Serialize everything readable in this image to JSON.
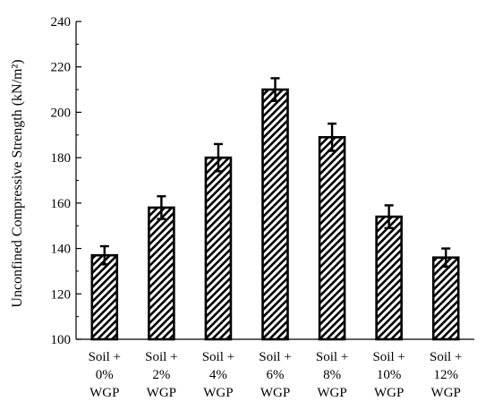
{
  "chart_data": {
    "type": "bar",
    "title": "",
    "xlabel": "",
    "ylabel": "Unconfined Compressive Strength (kN/m²)",
    "categories": [
      [
        "Soil +",
        "0%",
        "WGP"
      ],
      [
        "Soil +",
        "2%",
        "WGP"
      ],
      [
        "Soil +",
        "4%",
        "WGP"
      ],
      [
        "Soil +",
        "6%",
        "WGP"
      ],
      [
        "Soil +",
        "8%",
        "WGP"
      ],
      [
        "Soil +",
        "10%",
        "WGP"
      ],
      [
        "Soil +",
        "12%",
        "WGP"
      ]
    ],
    "values": [
      137,
      158,
      180,
      210,
      189,
      154,
      136
    ],
    "error": [
      4,
      5,
      6,
      5,
      6,
      5,
      4
    ],
    "ylim": [
      100,
      240
    ],
    "yticks": [
      100,
      120,
      140,
      160,
      180,
      200,
      220,
      240
    ],
    "grid": false,
    "bar_fill": "diagonal-hatch",
    "colors": {
      "bar_stroke": "#000000",
      "hatch": "#000000",
      "background": "#ffffff"
    }
  }
}
